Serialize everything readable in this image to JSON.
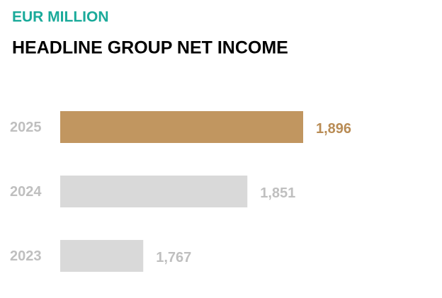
{
  "chart_data": {
    "type": "hbar",
    "subtitle": "EUR MILLION",
    "title": "HEADLINE GROUP NET INCOME",
    "categories": [
      "2025",
      "2024",
      "2023"
    ],
    "values": [
      1896,
      1851,
      1767
    ],
    "value_labels": [
      "1,896",
      "1,851",
      "1,767"
    ],
    "colors": [
      "#c19660",
      "#d9d9d9",
      "#d9d9d9"
    ],
    "label_colors": [
      "#b98c55",
      "#bfbfbf",
      "#bfbfbf"
    ],
    "xlim": [
      1700,
      2000
    ]
  }
}
